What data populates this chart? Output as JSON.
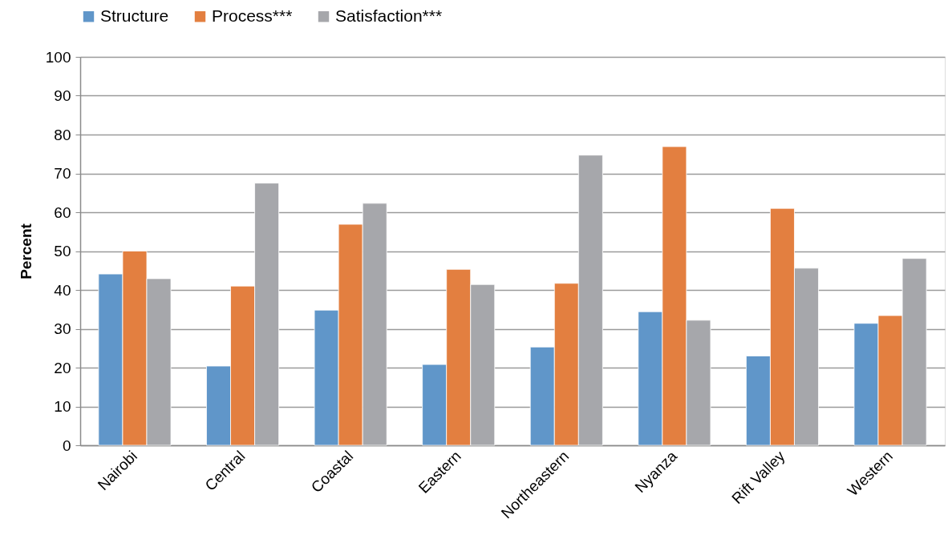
{
  "chart_data": {
    "type": "bar",
    "ylabel": "Percent",
    "categories": [
      "Nairobi",
      "Central",
      "Coastal",
      "Eastern",
      "Northeastern",
      "Nyanza",
      "Rift Valley",
      "Western"
    ],
    "series": [
      {
        "name": "Structure",
        "color": "#6096c9",
        "values": [
          44.1,
          20.4,
          34.8,
          20.8,
          25.3,
          34.4,
          23.0,
          31.4
        ]
      },
      {
        "name": "Process***",
        "color": "#e37f40",
        "values": [
          50.0,
          41.0,
          56.9,
          45.3,
          41.7,
          76.9,
          61.0,
          33.4
        ]
      },
      {
        "name": "Satisfaction***",
        "color": "#a6a7ab",
        "values": [
          42.9,
          67.5,
          62.3,
          41.4,
          74.7,
          32.2,
          45.6,
          48.1
        ]
      }
    ],
    "ylim": [
      0,
      100
    ],
    "yticks": [
      0,
      10,
      20,
      30,
      40,
      50,
      60,
      70,
      80,
      90,
      100
    ],
    "grid": "y",
    "legend": "top"
  }
}
